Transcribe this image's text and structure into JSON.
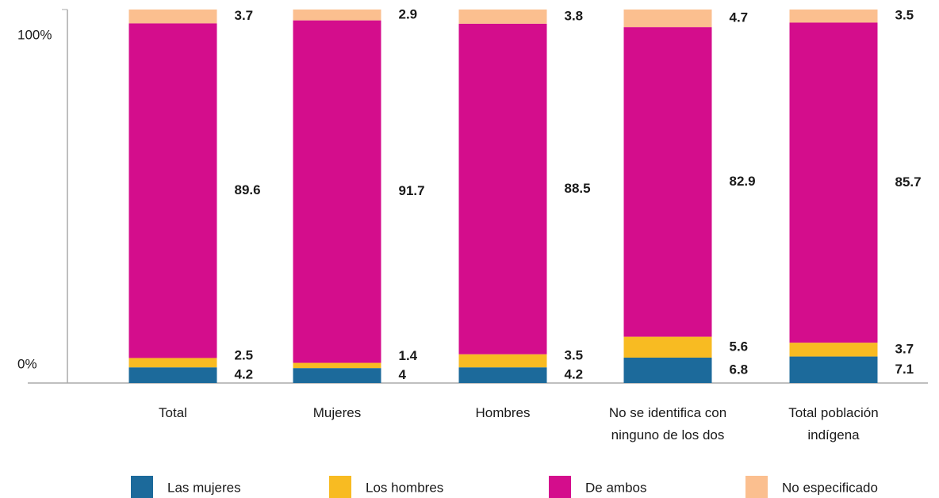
{
  "chart_data": {
    "type": "stacked_bar",
    "categories": [
      "Total",
      "Mujeres",
      "Hombres",
      "No se identifica con\nninguno de los dos",
      "Total población\nindígena"
    ],
    "series": [
      {
        "name": "Las mujeres",
        "color": "#1c6a9b",
        "values": [
          4.2,
          4.0,
          4.2,
          6.8,
          7.1
        ],
        "label_colors": [
          "#1c6a9b",
          "#1c6a9b",
          "#1c6a9b",
          "#1a1a1a",
          "#1a1a1a"
        ]
      },
      {
        "name": "Los hombres",
        "color": "#f8bb22",
        "values": [
          2.5,
          1.4,
          3.5,
          5.6,
          3.7
        ],
        "label_colors": [
          "#f2b01e",
          "#f2b01e",
          "#f2b01e",
          "#f2b01e",
          "#f2b01e"
        ]
      },
      {
        "name": "De ambos",
        "color": "#d40d8c",
        "values": [
          89.6,
          91.7,
          88.5,
          82.9,
          85.7
        ],
        "label_colors": [
          "#1a1a1a",
          "#1a1a1a",
          "#1a1a1a",
          "#1a1a1a",
          "#1a1a1a"
        ]
      },
      {
        "name": "No especificado",
        "color": "#fbbf8f",
        "values": [
          3.7,
          2.9,
          3.8,
          4.7,
          3.5
        ],
        "label_colors": [
          "#1a1a1a",
          "#1a1a1a",
          "#1a1a1a",
          "#1a1a1a",
          "#1a1a1a"
        ]
      }
    ],
    "ylim": [
      0,
      100
    ],
    "yticks": [
      {
        "value": 0,
        "label": "0%"
      },
      {
        "value": 100,
        "label": "100%"
      }
    ]
  }
}
